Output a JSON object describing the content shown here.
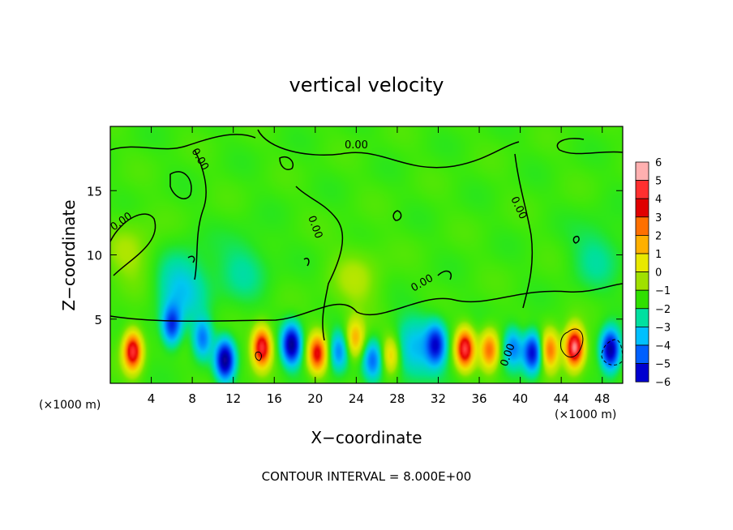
{
  "chart_data": {
    "type": "heatmap",
    "title": "vertical velocity",
    "xlabel": "X−coordinate",
    "ylabel": "Z−coordinate",
    "x_unit_left": "(×1000 m)",
    "x_unit_right": "(×1000 m)",
    "xlim": [
      0,
      50
    ],
    "ylim": [
      0,
      20
    ],
    "x_ticks": [
      4,
      8,
      12,
      16,
      20,
      24,
      28,
      32,
      36,
      40,
      44,
      48
    ],
    "y_ticks": [
      5,
      10,
      15
    ],
    "colorbar": {
      "levels": [
        6,
        5,
        4,
        3,
        2,
        1,
        0,
        -1,
        -2,
        -3,
        -4,
        -5,
        -6
      ],
      "labels": [
        "6",
        "5",
        "4",
        "3",
        "2",
        "1",
        "0",
        "−1",
        "−2",
        "−3",
        "−4",
        "−5",
        "−6"
      ],
      "colors": [
        "#ffb0b0",
        "#ff3030",
        "#e00000",
        "#ff7000",
        "#ffb000",
        "#e8e800",
        "#a0e000",
        "#30e000",
        "#00e0a0",
        "#00c0ff",
        "#0060ff",
        "#0000d0",
        "#7000b0"
      ]
    },
    "contour_label": "0.00",
    "contour_interval_text": "CONTOUR INTERVAL = 8.000E+00",
    "features": [
      {
        "x": 2.2,
        "z": 2.5,
        "w": 6
      },
      {
        "x": 6.0,
        "z": 4.5,
        "w": -4
      },
      {
        "x": 9.0,
        "z": 3.5,
        "w": -3
      },
      {
        "x": 11.2,
        "z": 1.8,
        "w": -6
      },
      {
        "x": 14.8,
        "z": 2.8,
        "w": 6
      },
      {
        "x": 17.7,
        "z": 3.0,
        "w": -6
      },
      {
        "x": 20.2,
        "z": 2.3,
        "w": 5
      },
      {
        "x": 22.3,
        "z": 2.5,
        "w": -3
      },
      {
        "x": 23.9,
        "z": 3.5,
        "w": 3
      },
      {
        "x": 25.6,
        "z": 1.8,
        "w": -3
      },
      {
        "x": 27.4,
        "z": 2.2,
        "w": 3
      },
      {
        "x": 29.8,
        "z": 2.6,
        "w": -2
      },
      {
        "x": 31.8,
        "z": 3.0,
        "w": -4
      },
      {
        "x": 34.6,
        "z": 2.7,
        "w": 6
      },
      {
        "x": 37.0,
        "z": 2.6,
        "w": 4
      },
      {
        "x": 39.3,
        "z": 2.8,
        "w": -3
      },
      {
        "x": 41.2,
        "z": 2.4,
        "w": -5
      },
      {
        "x": 42.9,
        "z": 2.6,
        "w": 4
      },
      {
        "x": 45.3,
        "z": 2.8,
        "w": 7
      },
      {
        "x": 48.8,
        "z": 2.6,
        "w": -6
      },
      {
        "x": 7.0,
        "z": 7.5,
        "w": -2
      },
      {
        "x": 2.0,
        "z": 10.0,
        "w": 1
      },
      {
        "x": 47.5,
        "z": 10.0,
        "w": -1
      },
      {
        "x": 13.0,
        "z": 9.0,
        "w": -1
      },
      {
        "x": 24.0,
        "z": 8.0,
        "w": 1
      }
    ]
  }
}
